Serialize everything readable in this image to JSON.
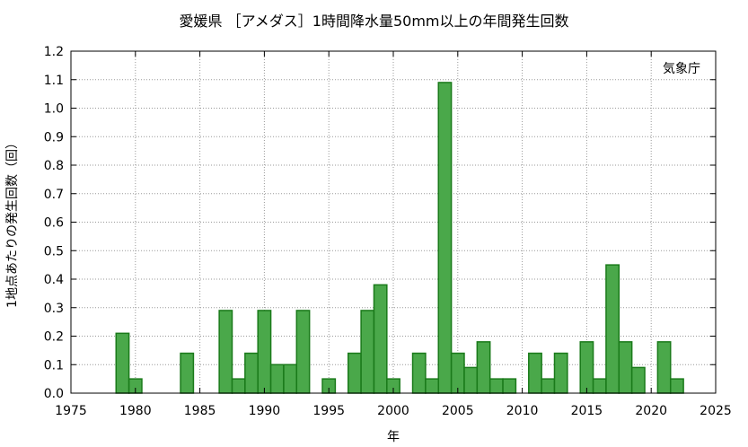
{
  "chart_data": {
    "type": "bar",
    "title": "愛媛県 ［アメダス］1時間降水量50mm以上の年間発生回数",
    "xlabel": "年",
    "ylabel": "1地点あたりの発生回数（回）",
    "source_label": "気象庁",
    "xlim": [
      1975,
      2025
    ],
    "ylim": [
      0.0,
      1.2
    ],
    "x_ticks": [
      "1975",
      "1980",
      "1985",
      "1990",
      "1995",
      "2000",
      "2005",
      "2010",
      "2015",
      "2020",
      "2025"
    ],
    "y_ticks": [
      "0.0",
      "0.1",
      "0.2",
      "0.3",
      "0.4",
      "0.5",
      "0.6",
      "0.7",
      "0.8",
      "0.9",
      "1.0",
      "1.1",
      "1.2"
    ],
    "grid": true,
    "bar_color": "#4aa84a",
    "bar_edge_color": "#1a7a1a",
    "x": [
      1976,
      1977,
      1978,
      1979,
      1980,
      1981,
      1982,
      1983,
      1984,
      1985,
      1986,
      1987,
      1988,
      1989,
      1990,
      1991,
      1992,
      1993,
      1994,
      1995,
      1996,
      1997,
      1998,
      1999,
      2000,
      2001,
      2002,
      2003,
      2004,
      2005,
      2006,
      2007,
      2008,
      2009,
      2010,
      2011,
      2012,
      2013,
      2014,
      2015,
      2016,
      2017,
      2018,
      2019,
      2020,
      2021,
      2022
    ],
    "values": [
      0,
      0,
      0,
      0.21,
      0.05,
      0,
      0,
      0,
      0.14,
      0,
      0,
      0.29,
      0.05,
      0.14,
      0.29,
      0.1,
      0.1,
      0.29,
      0,
      0.05,
      0,
      0.14,
      0.29,
      0.38,
      0.05,
      0,
      0.14,
      0.05,
      1.09,
      0.14,
      0.09,
      0.18,
      0.05,
      0.05,
      0,
      0.14,
      0.05,
      0.14,
      0,
      0.18,
      0.05,
      0.45,
      0.18,
      0.09,
      0,
      0.18,
      0.05
    ]
  }
}
